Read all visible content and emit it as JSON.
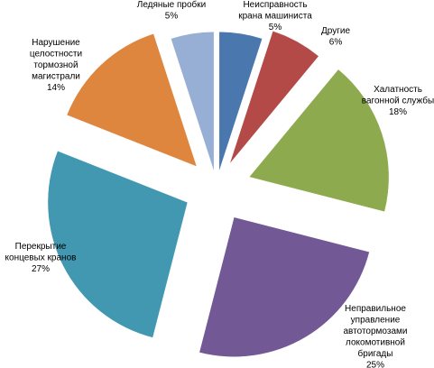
{
  "chart_data": {
    "type": "pie",
    "exploded": true,
    "start_angle_deg": 0,
    "direction": "clockwise",
    "slices": [
      {
        "name": "Неисправность крана машиниста",
        "value": 5,
        "label_lines": [
          "Неисправность",
          "крана машиниста"
        ],
        "value_label": "5%",
        "color": "#4A78AE"
      },
      {
        "name": "Другие",
        "value": 6,
        "label_lines": [
          "Другие"
        ],
        "value_label": "6%",
        "color": "#B34A47"
      },
      {
        "name": "Халатность вагонной службы",
        "value": 18,
        "label_lines": [
          "Халатность",
          "вагонной службы"
        ],
        "value_label": "18%",
        "color": "#8EAA4F"
      },
      {
        "name": "Неправильное управление автотормозами локомотивной бригады",
        "value": 25,
        "label_lines": [
          "Неправильное",
          "управление",
          "автотормозами",
          "локомотивной",
          "бригады"
        ],
        "value_label": "25%",
        "color": "#725894"
      },
      {
        "name": "Перекрытие концевых кранов",
        "value": 27,
        "label_lines": [
          "Перекрытие",
          "концевых кранов"
        ],
        "value_label": "27%",
        "color": "#4298B1"
      },
      {
        "name": "Нарушение целостности тормозной магистрали",
        "value": 14,
        "label_lines": [
          "Нарушение",
          "целостности",
          "тормозной",
          "магистрали"
        ],
        "value_label": "14%",
        "color": "#DE853E"
      },
      {
        "name": "Ледяные пробки",
        "value": 5,
        "label_lines": [
          "Ледяные пробки"
        ],
        "value_label": "5%",
        "color": "#97AFD5"
      }
    ]
  }
}
